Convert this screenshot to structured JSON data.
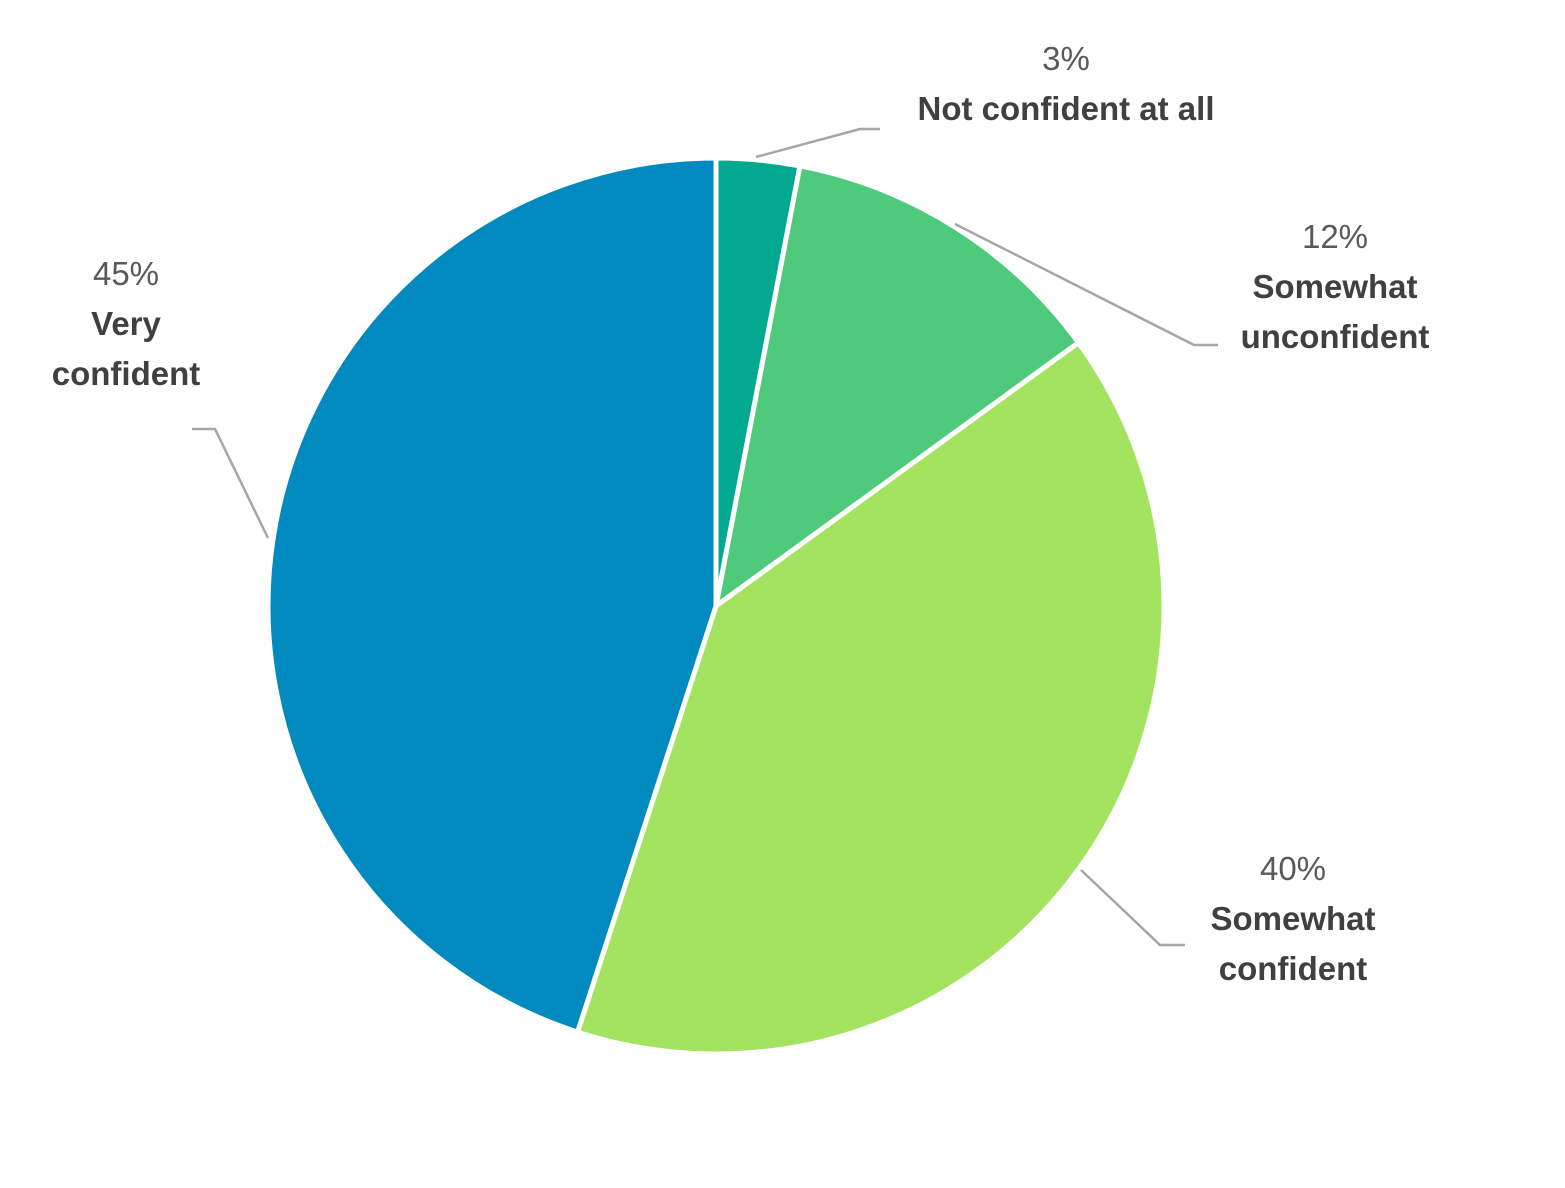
{
  "chart_data": {
    "type": "pie",
    "title": "",
    "start_angle_deg": 0,
    "direction": "clockwise",
    "slices": [
      {
        "label_lines": [
          "Not confident at all"
        ],
        "value": 3,
        "value_label": "3%",
        "color": "#00a98f"
      },
      {
        "label_lines": [
          "Somewhat",
          "unconfident"
        ],
        "value": 12,
        "value_label": "12%",
        "color": "#4fc97b"
      },
      {
        "label_lines": [
          "Somewhat",
          "confident"
        ],
        "value": 40,
        "value_label": "40%",
        "color": "#a3e35f"
      },
      {
        "label_lines": [
          "Very",
          "confident"
        ],
        "value": 45,
        "value_label": "45%",
        "color": "#008abf"
      }
    ]
  }
}
